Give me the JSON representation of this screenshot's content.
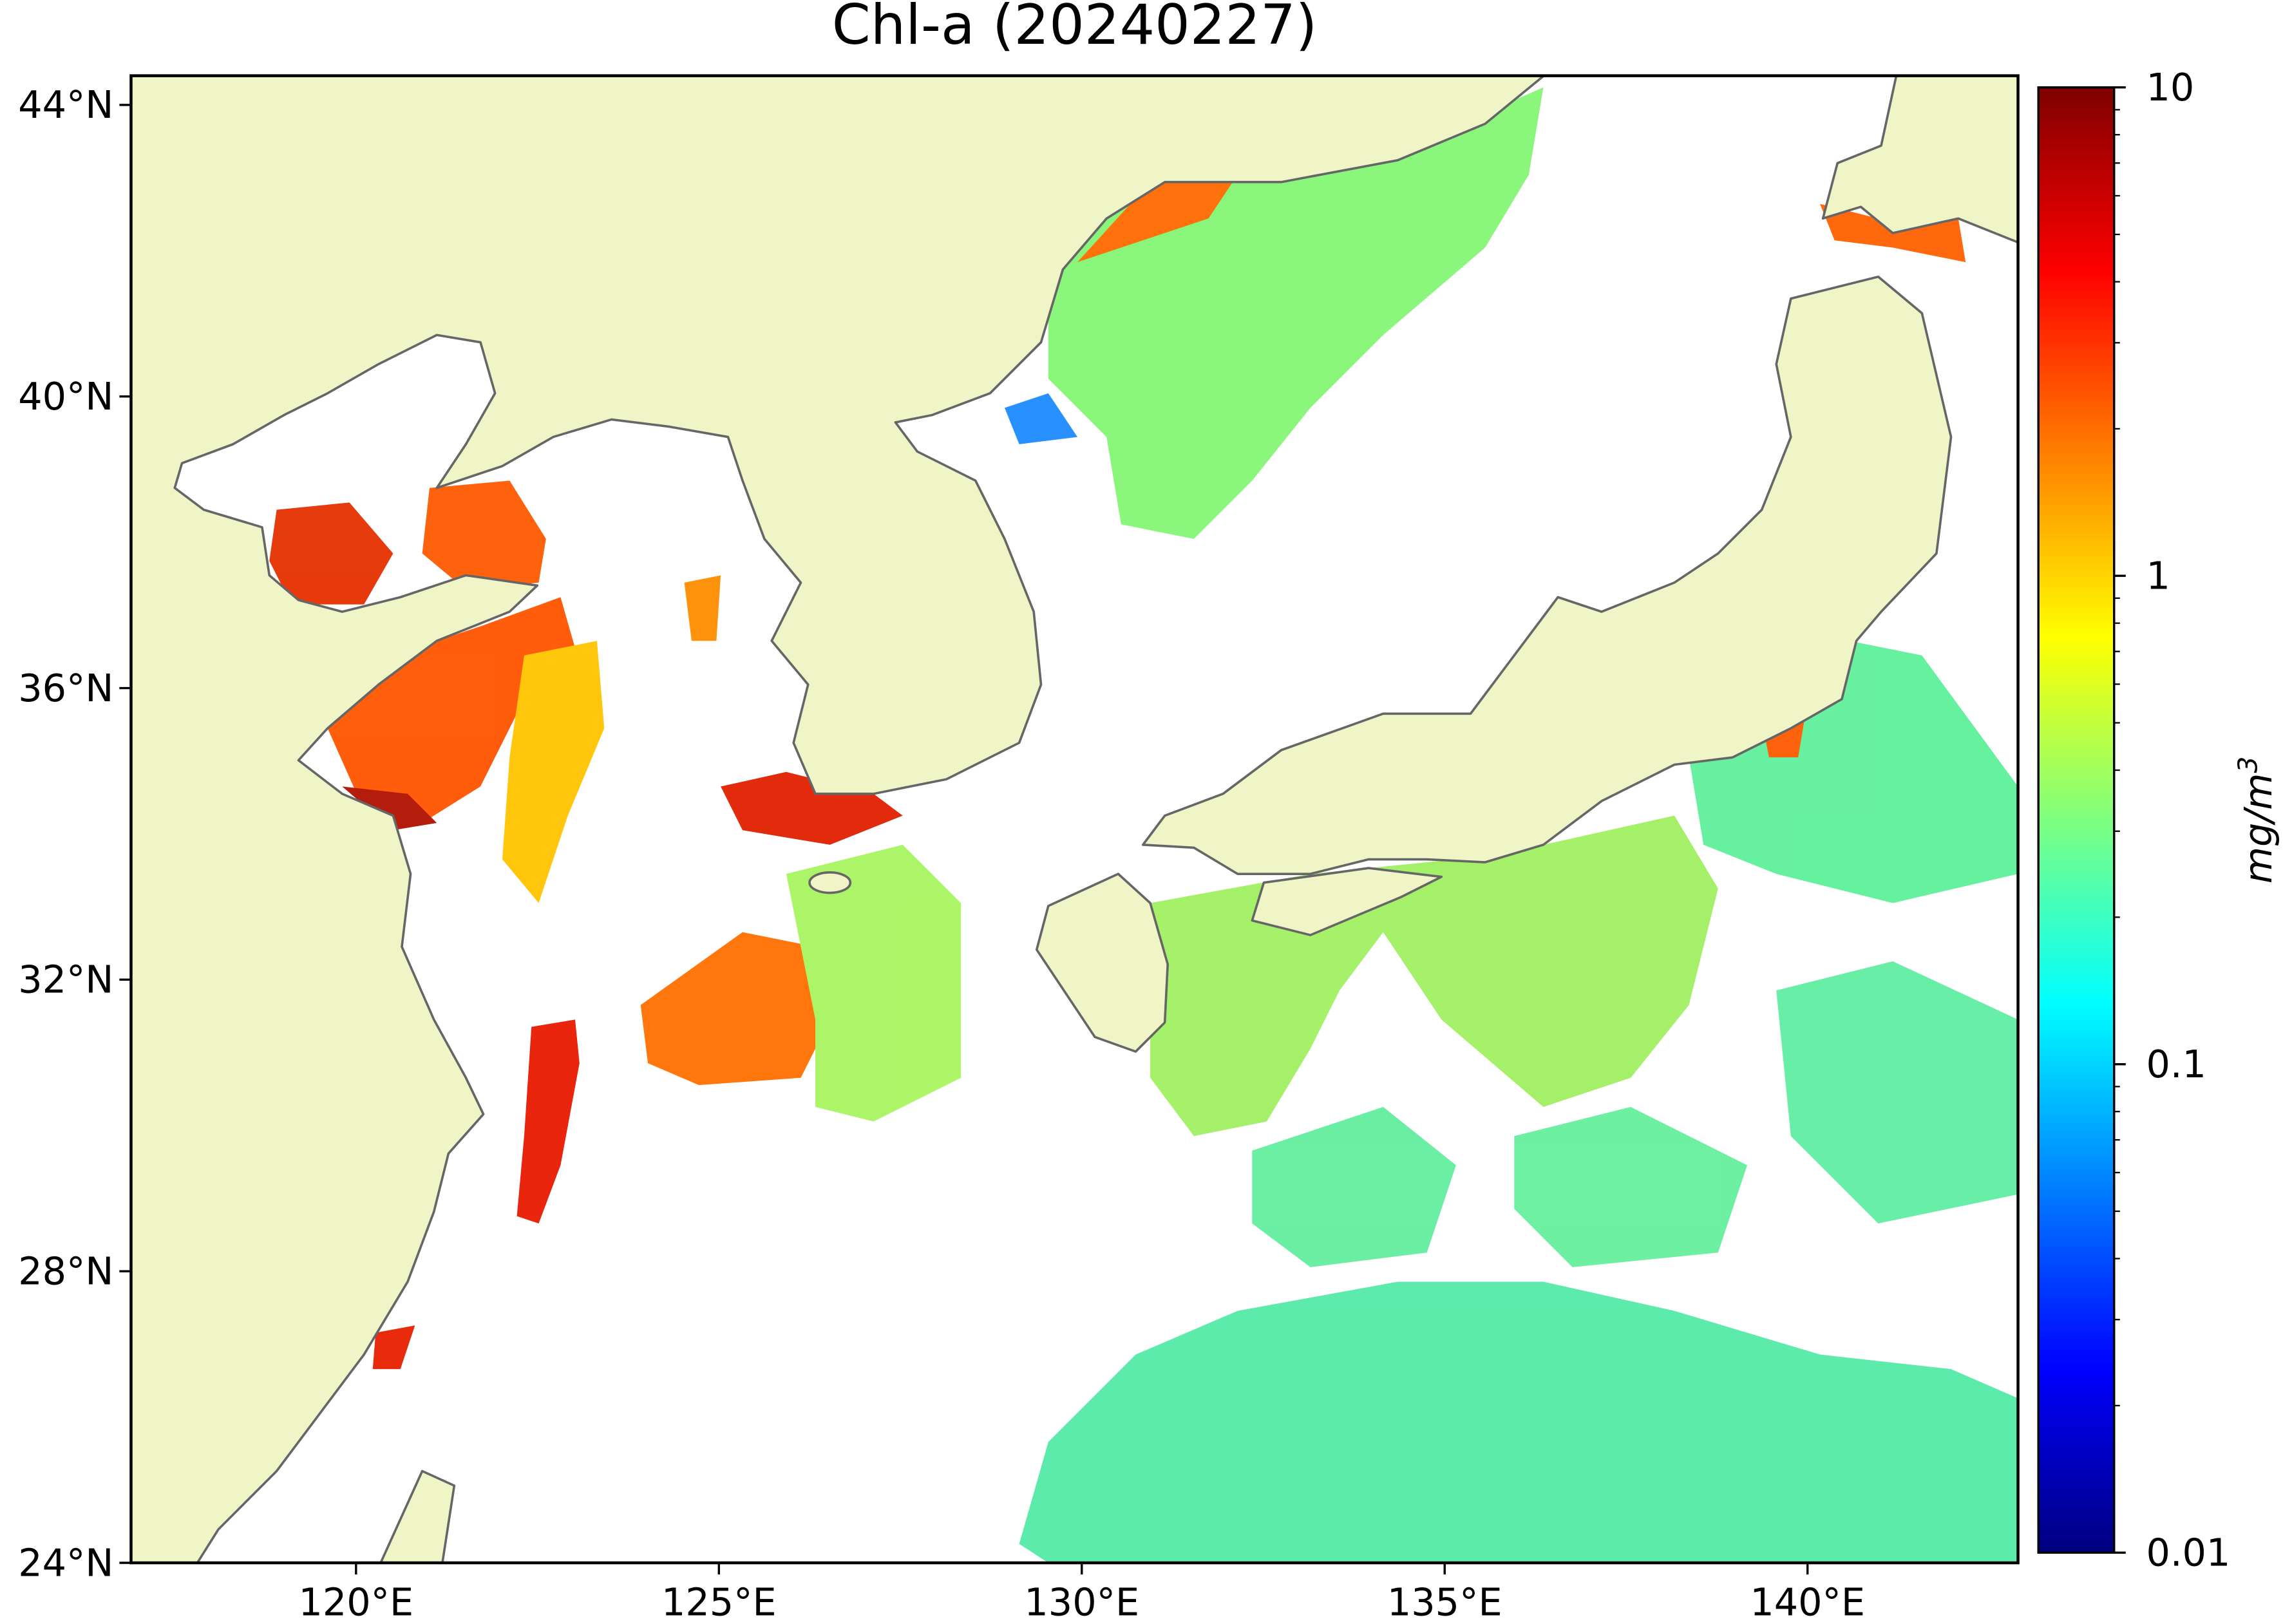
{
  "chart_data": {
    "type": "map",
    "title": "Chl-a (20240227)",
    "xlim": [
      116.9,
      142.9
    ],
    "ylim": [
      24,
      44.4
    ],
    "xticks": [
      {
        "value": 120,
        "label": "120°E"
      },
      {
        "value": 125,
        "label": "125°E"
      },
      {
        "value": 130,
        "label": "130°E"
      },
      {
        "value": 135,
        "label": "135°E"
      },
      {
        "value": 140,
        "label": "140°E"
      }
    ],
    "yticks": [
      {
        "value": 24,
        "label": "24°N"
      },
      {
        "value": 28,
        "label": "28°N"
      },
      {
        "value": 32,
        "label": "32°N"
      },
      {
        "value": 36,
        "label": "36°N"
      },
      {
        "value": 40,
        "label": "40°N"
      },
      {
        "value": 44,
        "label": "44°N"
      }
    ],
    "colorbar": {
      "label": [
        "mg/m",
        "3"
      ],
      "scale": "log",
      "lim": [
        0.01,
        10
      ],
      "ticks": [
        0.01,
        0.1,
        1,
        10
      ],
      "minor_ticks": [
        0.02,
        0.03,
        0.04,
        0.05,
        0.06,
        0.07,
        0.08,
        0.09,
        0.2,
        0.3,
        0.4,
        0.5,
        0.6,
        0.7,
        0.8,
        0.9,
        2,
        3,
        4,
        5,
        6,
        7,
        8,
        9
      ],
      "colors": [
        "#00007f",
        "#0000ff",
        "#007fff",
        "#00ffff",
        "#7fff7f",
        "#ffff00",
        "#ff7f00",
        "#ff0000",
        "#7f0000"
      ]
    }
  }
}
